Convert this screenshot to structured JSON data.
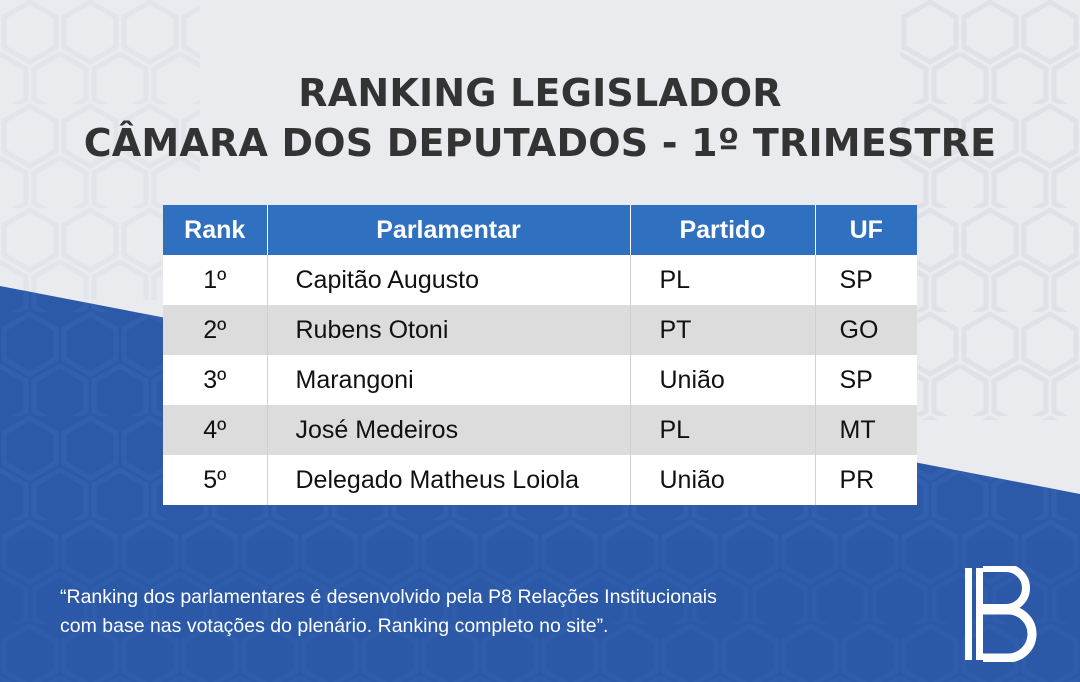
{
  "title": {
    "line1": "RANKING LEGISLADOR",
    "line2": "CÂMARA DOS DEPUTADOS - 1º TRIMESTRE"
  },
  "table": {
    "headers": {
      "rank": "Rank",
      "name": "Parlamentar",
      "party": "Partido",
      "uf": "UF"
    },
    "rows": [
      {
        "rank": "1º",
        "name": "Capitão Augusto",
        "party": "PL",
        "uf": "SP"
      },
      {
        "rank": "2º",
        "name": "Rubens Otoni",
        "party": "PT",
        "uf": "GO"
      },
      {
        "rank": "3º",
        "name": "Marangoni",
        "party": "União",
        "uf": "SP"
      },
      {
        "rank": "4º",
        "name": "José Medeiros",
        "party": "PL",
        "uf": "MT"
      },
      {
        "rank": "5º",
        "name": "Delegado Matheus Loiola",
        "party": "União",
        "uf": "PR"
      }
    ]
  },
  "footer": {
    "line1": "“Ranking dos parlamentares é desenvolvido pela P8 Relações Institucionais",
    "line2": "com base nas votações do plenário. Ranking completo no site”."
  },
  "logo": {
    "icon": "p8-logo-icon"
  },
  "colors": {
    "header_blue": "#2f70c0",
    "background_blue": "#2c5aa8",
    "background_light": "#e9ebef",
    "title_text": "#333333",
    "row_alt": "#dcdcdc"
  }
}
